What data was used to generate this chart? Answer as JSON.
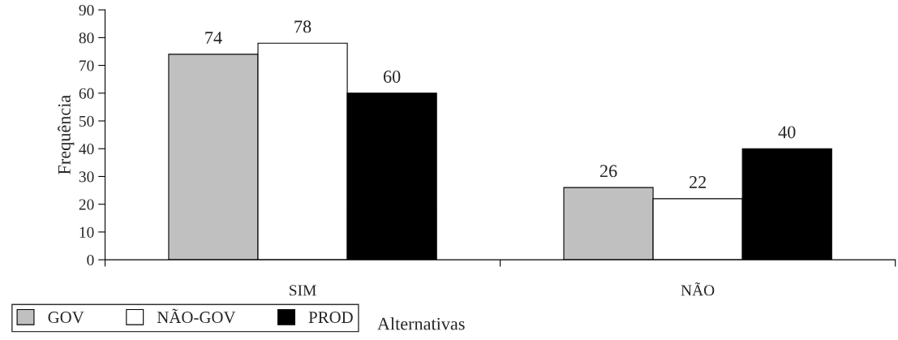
{
  "chart_data": {
    "type": "bar",
    "xlabel": "Alternativas",
    "ylabel": "Frequência",
    "categories": [
      "SIM",
      "NÃO"
    ],
    "series": [
      {
        "name": "GOV",
        "color": "#c0c0c0",
        "values": [
          74,
          26
        ]
      },
      {
        "name": "NÃO-GOV",
        "color": "#ffffff",
        "values": [
          78,
          22
        ]
      },
      {
        "name": "PROD",
        "color": "#000000",
        "values": [
          60,
          40
        ]
      }
    ],
    "ylim": [
      0,
      90
    ],
    "yticks": [
      0,
      10,
      20,
      30,
      40,
      50,
      60,
      70,
      80,
      90
    ],
    "data_labels": true,
    "grid": false,
    "legend": "bottom left"
  }
}
